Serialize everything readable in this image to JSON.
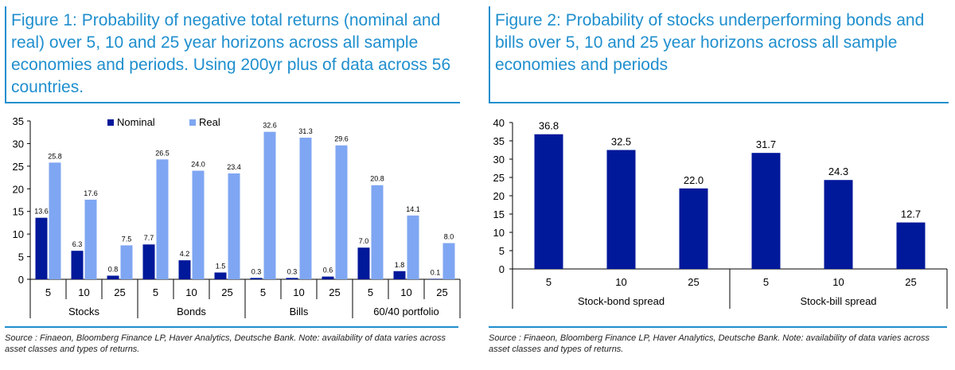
{
  "figure1": {
    "title": "Figure 1: Probability of negative total returns (nominal and real) over 5, 10 and 25 year horizons across all sample economies and periods. Using 200yr plus of data across 56 countries.",
    "source": "Source : Finaeon, Bloomberg Finance LP, Haver Analytics, Deutsche Bank. Note: availability of data varies across asset classes and types of returns."
  },
  "figure2": {
    "title": "Figure 2: Probability of stocks underperforming bonds and bills over 5, 10 and 25 year horizons across all sample economies and periods",
    "source": "Source : Finaeon, Bloomberg Finance LP, Haver Analytics, Deutsche Bank. Note: availability of data varies across asset classes and types of returns."
  },
  "colors": {
    "nominal": "#00189a",
    "real": "#7fa6f2",
    "spread": "#00189a",
    "title": "#1f8fce",
    "axis": "#000000"
  },
  "chart_data": [
    {
      "type": "bar",
      "title": "",
      "groups": [
        "Stocks",
        "Bonds",
        "Bills",
        "60/40 portfolio"
      ],
      "categories": [
        "5",
        "10",
        "25",
        "5",
        "10",
        "25",
        "5",
        "10",
        "25",
        "5",
        "10",
        "25"
      ],
      "series": [
        {
          "name": "Nominal",
          "values": [
            13.6,
            6.3,
            0.8,
            7.7,
            4.2,
            1.5,
            0.3,
            0.3,
            0.6,
            7.0,
            1.8,
            0.1
          ]
        },
        {
          "name": "Real",
          "values": [
            25.8,
            17.6,
            7.5,
            26.5,
            24.0,
            23.4,
            32.6,
            31.3,
            29.6,
            20.8,
            14.1,
            8.0
          ]
        }
      ],
      "value_labels": {
        "Nominal": [
          "13.6",
          "6.3",
          "0.8",
          "7.7",
          "4.2",
          "1.5",
          "0.3",
          "0.3",
          "0.6",
          "7.0",
          "1.8",
          "0.1"
        ],
        "Real": [
          "25.8",
          "17.6",
          "7.5",
          "26.5",
          "24.0",
          "23.4",
          "32.6",
          "31.3",
          "29.6",
          "20.8",
          "14.1",
          "8.0"
        ]
      },
      "ylim": [
        0,
        35
      ],
      "yticks": [
        "0",
        "5",
        "10",
        "15",
        "20",
        "25",
        "30",
        "35"
      ],
      "legend": "top-center",
      "grid": false
    },
    {
      "type": "bar",
      "title": "",
      "groups": [
        "Stock-bond spread",
        "Stock-bill spread"
      ],
      "categories": [
        "5",
        "10",
        "25",
        "5",
        "10",
        "25"
      ],
      "series": [
        {
          "values": [
            36.8,
            32.5,
            22.0,
            31.7,
            24.3,
            12.7
          ]
        }
      ],
      "value_labels": [
        "36.8",
        "32.5",
        "22.0",
        "31.7",
        "24.3",
        "12.7"
      ],
      "ylim": [
        0,
        40
      ],
      "yticks": [
        "0",
        "5",
        "10",
        "15",
        "20",
        "25",
        "30",
        "35",
        "40"
      ],
      "legend": "none",
      "grid": false
    }
  ]
}
